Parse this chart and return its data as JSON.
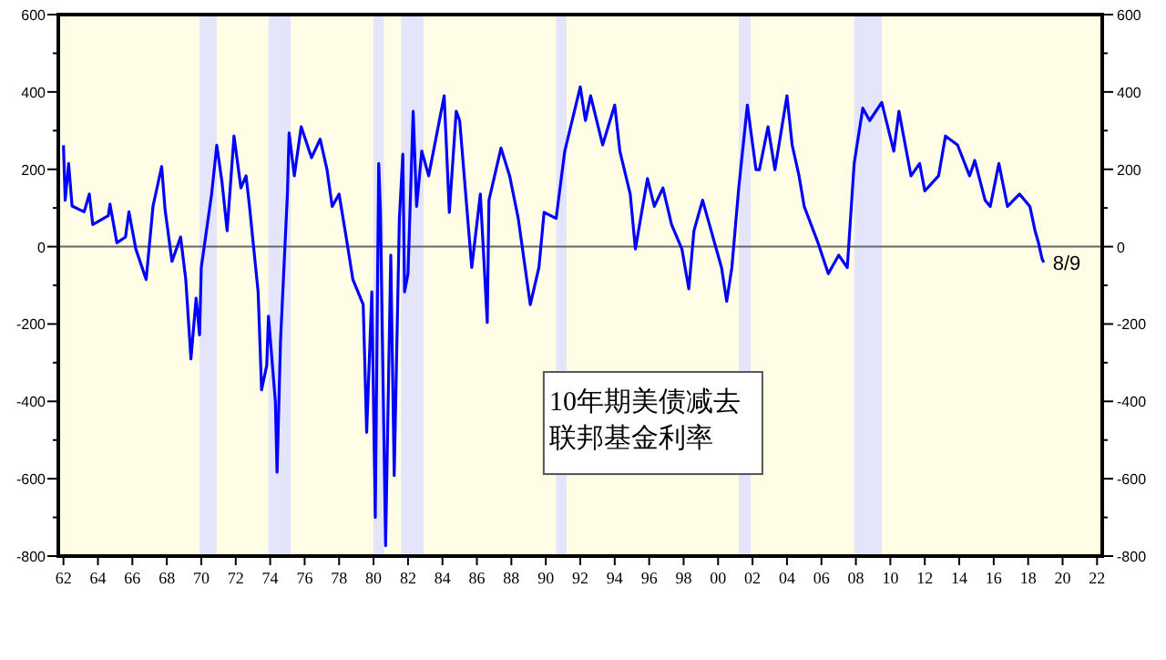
{
  "chart_data": {
    "type": "line",
    "x": [
      1962.0,
      1962.1,
      1962.3,
      1962.5,
      1963.2,
      1963.5,
      1963.7,
      1964.6,
      1964.7,
      1965.1,
      1965.6,
      1965.8,
      1966.2,
      1966.8,
      1967.2,
      1967.7,
      1967.9,
      1968.3,
      1968.8,
      1969.1,
      1969.4,
      1969.7,
      1969.9,
      1970.0,
      1970.6,
      1970.9,
      1971.2,
      1971.5,
      1971.9,
      1972.3,
      1972.6,
      1972.8,
      1973.3,
      1973.5,
      1973.8,
      1973.9,
      1974.3,
      1974.4,
      1974.6,
      1975.0,
      1975.1,
      1975.4,
      1975.8,
      1976.4,
      1976.9,
      1977.3,
      1977.6,
      1978.0,
      1978.5,
      1978.8,
      1979.4,
      1979.6,
      1979.9,
      1980.1,
      1980.3,
      1980.4,
      1980.7,
      1981.0,
      1981.2,
      1981.5,
      1981.7,
      1981.8,
      1982.0,
      1982.3,
      1982.5,
      1982.8,
      1983.2,
      1984.1,
      1984.4,
      1984.8,
      1985.0,
      1985.7,
      1986.2,
      1986.6,
      1986.7,
      1987.4,
      1987.9,
      1988.4,
      1989.1,
      1989.6,
      1989.9,
      1990.6,
      1991.1,
      1992.0,
      1992.3,
      1992.6,
      1993.3,
      1994.0,
      1994.3,
      1994.9,
      1995.2,
      1995.9,
      1996.3,
      1996.8,
      1997.3,
      1997.9,
      1998.3,
      1998.6,
      1999.1,
      1999.6,
      2000.2,
      2000.5,
      2000.8,
      2001.2,
      2001.7,
      2002.2,
      2002.4,
      2002.9,
      2003.3,
      2004.0,
      2004.3,
      2004.7,
      2005.0,
      2005.8,
      2006.4,
      2007.0,
      2007.5,
      2007.9,
      2008.4,
      2008.8,
      2009.5,
      2010.2,
      2010.5,
      2011.2,
      2011.7,
      2012.0,
      2012.8,
      2013.2,
      2013.9,
      2014.6,
      2014.9,
      2015.5,
      2015.8,
      2016.3,
      2016.8,
      2017.5,
      2018.1,
      2018.4,
      2018.6,
      2018.8,
      2018.9
    ],
    "series": [
      {
        "color": "#0000ff",
        "values": [
          262,
          120,
          215,
          105,
          90,
          136,
          57,
          80,
          110,
          10,
          25,
          90,
          -6,
          -85,
          105,
          207,
          95,
          -38,
          25,
          -85,
          -290,
          -133,
          -228,
          -54,
          136,
          262,
          168,
          41,
          286,
          152,
          183,
          104,
          -117,
          -370,
          -307,
          -180,
          -400,
          -583,
          -243,
          136,
          294,
          183,
          310,
          230,
          278,
          199,
          104,
          136,
          0,
          -85,
          -150,
          -480,
          -117,
          -700,
          215,
          89,
          -773,
          -22,
          -592,
          73,
          239,
          -117,
          -70,
          350,
          104,
          247,
          183,
          390,
          89,
          350,
          326,
          -54,
          136,
          -196,
          120,
          255,
          183,
          73,
          -150,
          -54,
          89,
          73,
          247,
          413,
          326,
          390,
          263,
          366,
          247,
          136,
          -6,
          176,
          104,
          152,
          57,
          -6,
          -109,
          41,
          120,
          41,
          -54,
          -141,
          -54,
          152,
          366,
          199,
          199,
          310,
          199,
          390,
          263,
          183,
          104,
          10,
          -70,
          -22,
          -54,
          215,
          358,
          326,
          373,
          247,
          350,
          183,
          215,
          144,
          183,
          286,
          263,
          183,
          223,
          120,
          104,
          215,
          104,
          136,
          104,
          41,
          10,
          -30,
          -41
        ]
      }
    ],
    "xlim": [
      1961.7,
      2022.3
    ],
    "xticks": [
      {
        "value": 1962,
        "label": "62"
      },
      {
        "value": 1964,
        "label": "64"
      },
      {
        "value": 1966,
        "label": "66"
      },
      {
        "value": 1968,
        "label": "68"
      },
      {
        "value": 1970,
        "label": "70"
      },
      {
        "value": 1972,
        "label": "72"
      },
      {
        "value": 1974,
        "label": "74"
      },
      {
        "value": 1976,
        "label": "76"
      },
      {
        "value": 1978,
        "label": "78"
      },
      {
        "value": 1980,
        "label": "80"
      },
      {
        "value": 1982,
        "label": "82"
      },
      {
        "value": 1984,
        "label": "84"
      },
      {
        "value": 1986,
        "label": "86"
      },
      {
        "value": 1988,
        "label": "88"
      },
      {
        "value": 1990,
        "label": "90"
      },
      {
        "value": 1992,
        "label": "92"
      },
      {
        "value": 1994,
        "label": "94"
      },
      {
        "value": 1996,
        "label": "96"
      },
      {
        "value": 1998,
        "label": "98"
      },
      {
        "value": 2000,
        "label": "00"
      },
      {
        "value": 2002,
        "label": "02"
      },
      {
        "value": 2004,
        "label": "04"
      },
      {
        "value": 2006,
        "label": "06"
      },
      {
        "value": 2008,
        "label": "08"
      },
      {
        "value": 2010,
        "label": "10"
      },
      {
        "value": 2012,
        "label": "12"
      },
      {
        "value": 2014,
        "label": "14"
      },
      {
        "value": 2016,
        "label": "16"
      },
      {
        "value": 2018,
        "label": "18"
      },
      {
        "value": 2020,
        "label": "20"
      },
      {
        "value": 2022,
        "label": "22"
      }
    ],
    "ylim": [
      -800,
      600
    ],
    "yticks": [
      -800,
      {
        "value": -700,
        "label": null
      },
      -600,
      {
        "value": -500,
        "label": null
      },
      -400,
      {
        "value": -300,
        "label": null
      },
      -200,
      {
        "value": -100,
        "label": null
      },
      0,
      {
        "value": 100,
        "label": null
      },
      200,
      {
        "value": 300,
        "label": null
      },
      400,
      {
        "value": 500,
        "label": null
      },
      600
    ],
    "y2lim": [
      -800,
      600
    ],
    "y2ticks": [
      -800,
      {
        "value": -700,
        "label": null
      },
      -600,
      {
        "value": -500,
        "label": null
      },
      -400,
      {
        "value": -300,
        "label": null
      },
      -200,
      {
        "value": -100,
        "label": null
      },
      0,
      {
        "value": 100,
        "label": null
      },
      200,
      {
        "value": 300,
        "label": null
      },
      400,
      {
        "value": 500,
        "label": null
      },
      600
    ],
    "ref_lines": [
      {
        "axis": "y",
        "value": 0,
        "color": "#666666"
      }
    ],
    "bands": [
      {
        "axis": "x",
        "from": 1969.9,
        "to": 1970.9,
        "color": "#e4e4fa"
      },
      {
        "axis": "x",
        "from": 1973.9,
        "to": 1975.2,
        "color": "#e4e4fa"
      },
      {
        "axis": "x",
        "from": 1980.0,
        "to": 1980.6,
        "color": "#e4e4fa"
      },
      {
        "axis": "x",
        "from": 1981.6,
        "to": 1982.9,
        "color": "#e4e4fa"
      },
      {
        "axis": "x",
        "from": 1990.6,
        "to": 1991.2,
        "color": "#e4e4fa"
      },
      {
        "axis": "x",
        "from": 2001.2,
        "to": 2001.9,
        "color": "#e4e4fa"
      },
      {
        "axis": "x",
        "from": 2007.9,
        "to": 2009.5,
        "color": "#e4e4fa"
      }
    ],
    "annotations": [
      "10年期美债减去",
      "联邦基金利率",
      {
        "text": "8/9",
        "x": 2018.9,
        "y": -41
      }
    ]
  }
}
